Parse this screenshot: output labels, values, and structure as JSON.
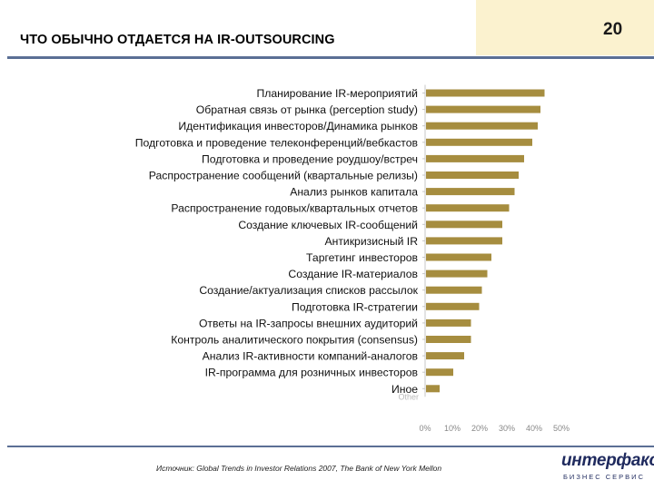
{
  "header": {
    "title": "ЧТО ОБЫЧНО ОТДАЕТСЯ НА IR-OUTSOURCING",
    "page_number": "20"
  },
  "chart_data": {
    "type": "bar",
    "orientation": "horizontal",
    "categories": [
      "Планирование IR-мероприятий",
      "Обратная связь от рынка (perception study)",
      "Идентификация инвесторов/Динамика рынков",
      "Подготовка и проведение телеконференций/вебкастов",
      "Подготовка и проведение роудшоу/встреч",
      "Распространение сообщений (квартальные релизы)",
      "Анализ рынков капитала",
      "Распространение годовых/квартальных отчетов",
      "Создание ключевых IR-сообщений",
      "Антикризисный IR",
      "Таргетинг инвесторов",
      "Создание IR-материалов",
      "Создание/актуализация списков рассылок",
      "Подготовка IR-стратегии",
      "Ответы на IR-запросы внешних аудиторий",
      "Контроль аналитического покрытия (consensus)",
      "Анализ IR-активности компаний-аналогов",
      "IR-программа для розничных инвесторов",
      "Иное"
    ],
    "values": [
      43.5,
      42,
      41,
      39,
      36,
      34,
      32.5,
      30.5,
      28,
      28,
      24,
      22.5,
      20.5,
      19.5,
      16.5,
      16.5,
      14,
      10,
      5
    ],
    "xlim": [
      0,
      50
    ],
    "x_ticks": [
      "0%",
      "10%",
      "20%",
      "30%",
      "40%",
      "50%"
    ],
    "faint_original_label": "Other",
    "bar_color": "#a68d3f",
    "grid": false
  },
  "footer": {
    "source": "Источник: Global Trends in Investor Relations 2007, The Bank of New York Mellon",
    "logo_main": "интерфакс",
    "logo_sub": "БИЗНЕС СЕРВИС"
  }
}
